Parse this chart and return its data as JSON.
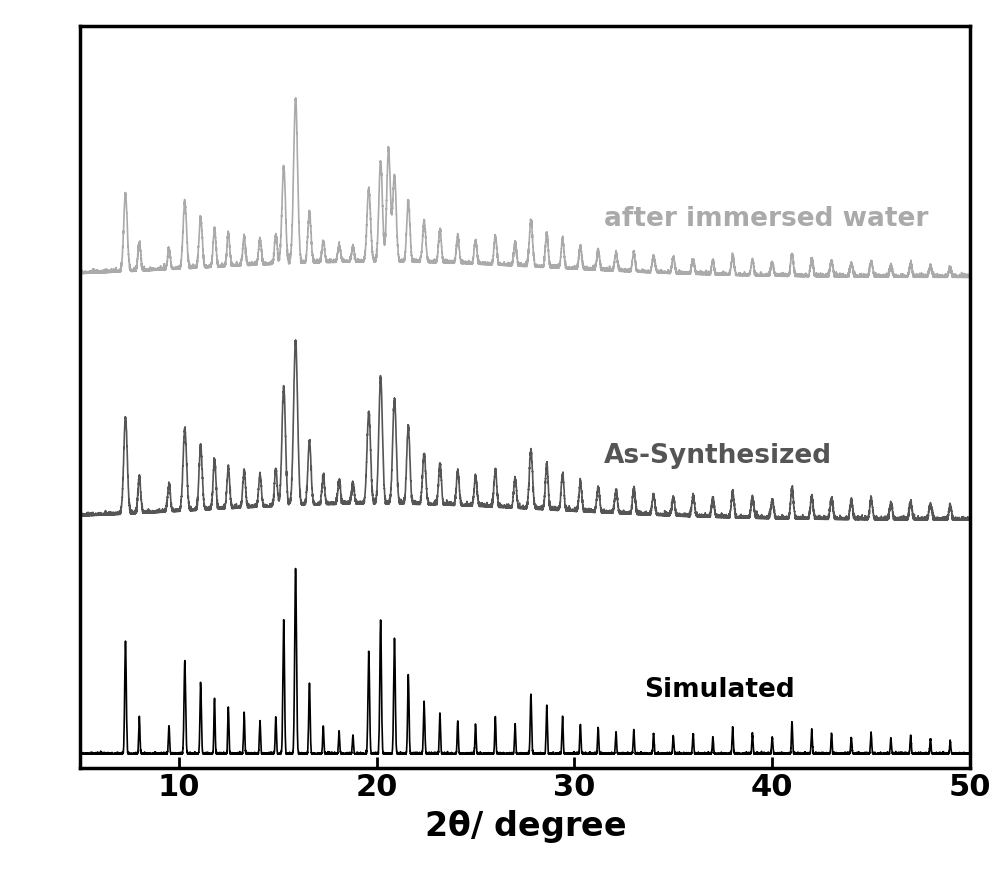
{
  "xlim": [
    5,
    50
  ],
  "xticks": [
    10,
    20,
    30,
    40,
    50
  ],
  "xlabel": "2θ/ degree",
  "xlabel_fontsize": 24,
  "tick_fontsize": 22,
  "line_width": 1.2,
  "colors": {
    "simulated": "#000000",
    "as_synthesized": "#555555",
    "after_water": "#aaaaaa"
  },
  "labels": {
    "simulated": "Simulated",
    "as_synthesized": "As-Synthesized",
    "after_water": "after immersed water"
  },
  "label_fontsize": 19,
  "background_color": "#ffffff",
  "scale_sim": 0.65,
  "scale_as": 0.65,
  "scale_aw": 0.65,
  "off_sim": 0.0,
  "off_as": 0.8,
  "off_aw": 1.65
}
